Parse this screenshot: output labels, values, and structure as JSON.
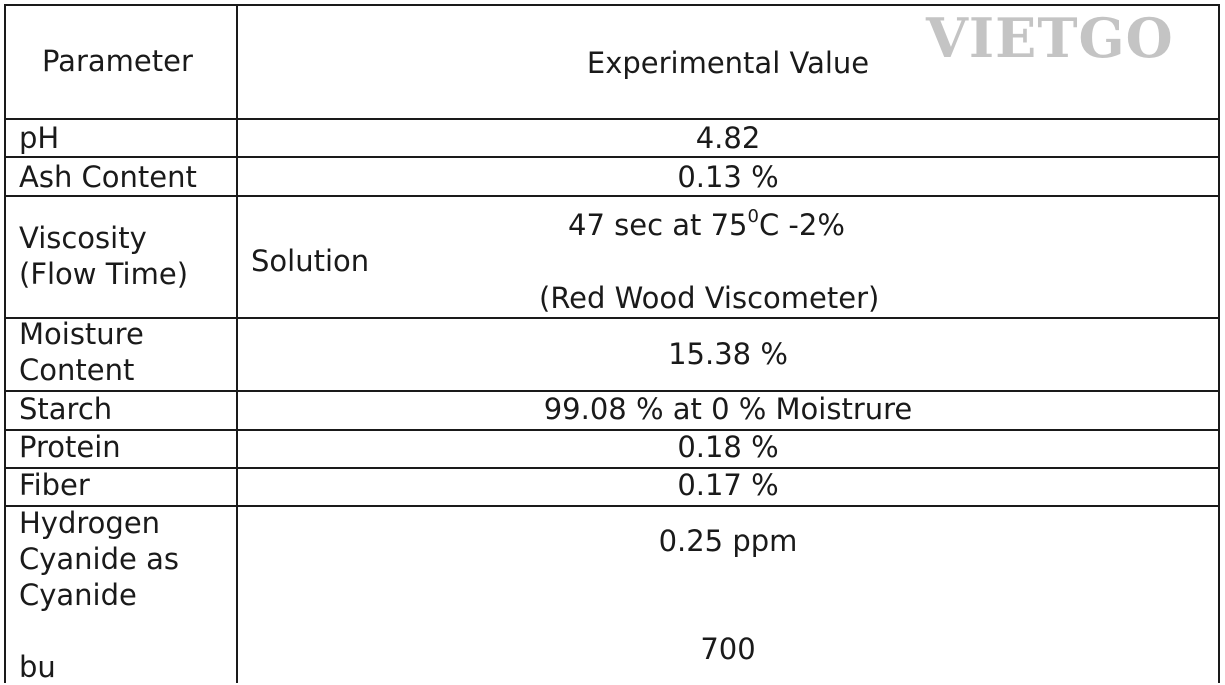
{
  "watermark": "VIETGO",
  "header": {
    "parameter": "Parameter",
    "value": "Experimental Value"
  },
  "rows": {
    "ph": {
      "label": "pH",
      "value": "4.82"
    },
    "ash": {
      "label": "Ash Content",
      "value": "0.13 %"
    },
    "viscosity": {
      "label_line1": "Viscosity",
      "label_line2": "(Flow Time)",
      "solution": "Solution",
      "value_main": "47 sec at 75",
      "value_sup": "0",
      "value_tail": "C -2%",
      "value_line2": "(Red Wood Viscometer)"
    },
    "moisture": {
      "label_line1": "Moisture",
      "label_line2": "Content",
      "value": "15.38 %"
    },
    "starch": {
      "label": "Starch",
      "value": "99.08 % at 0 % Moistrure"
    },
    "protein": {
      "label": "Protein",
      "value": "0.18 %"
    },
    "fiber": {
      "label": "Fiber",
      "value": "0.17 %"
    },
    "hcn": {
      "label_line1": "Hydrogen",
      "label_line2": "Cyanide as",
      "label_line3": "Cyanide",
      "value": "0.25 ppm"
    },
    "bu": {
      "label": "bu",
      "value": "700"
    }
  }
}
